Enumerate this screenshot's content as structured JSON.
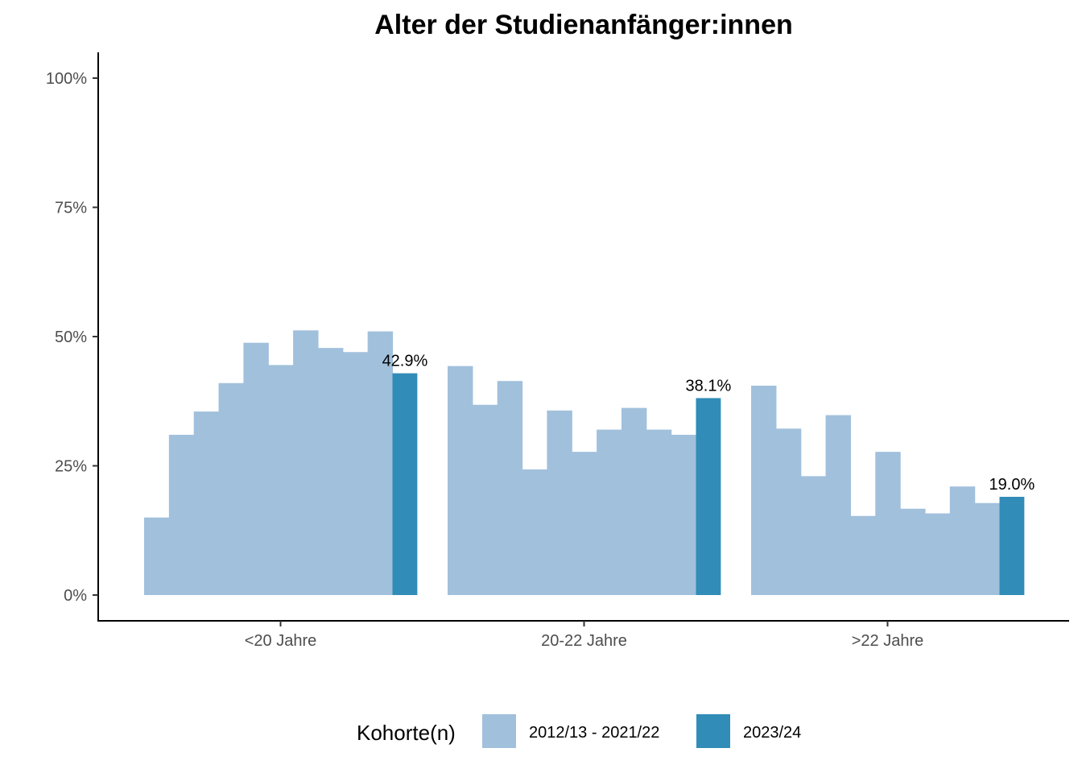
{
  "chart_data": {
    "type": "bar",
    "title": "Alter der Studienanfänger:innen",
    "xlabel": "",
    "ylabel": "",
    "ylim": [
      0,
      1.05
    ],
    "y_ticks": [
      0,
      0.25,
      0.5,
      0.75,
      1.0
    ],
    "y_tick_labels": [
      "0%",
      "25%",
      "50%",
      "75%",
      "100%"
    ],
    "categories": [
      "<20 Jahre",
      "20-22 Jahre",
      ">22 Jahre"
    ],
    "series": [
      {
        "name": "2012/13 - 2021/22",
        "color": "#a1c0dc",
        "values": [
          [
            0.15,
            0.31,
            0.355,
            0.41,
            0.488,
            0.445,
            0.512,
            0.478,
            0.47,
            0.51
          ],
          [
            0.443,
            0.368,
            0.414,
            0.243,
            0.357,
            0.277,
            0.32,
            0.362,
            0.32,
            0.31
          ],
          [
            0.405,
            0.322,
            0.23,
            0.348,
            0.153,
            0.277,
            0.167,
            0.158,
            0.21,
            0.178
          ]
        ]
      },
      {
        "name": "2023/24",
        "color": "#318cb8",
        "values": [
          0.429,
          0.381,
          0.19
        ],
        "labels": [
          "42.9%",
          "38.1%",
          "19.0%"
        ]
      }
    ],
    "legend": {
      "title": "Kohorte(n)",
      "position": "bottom",
      "entries": [
        "2012/13 - 2021/22",
        "2023/24"
      ]
    }
  }
}
